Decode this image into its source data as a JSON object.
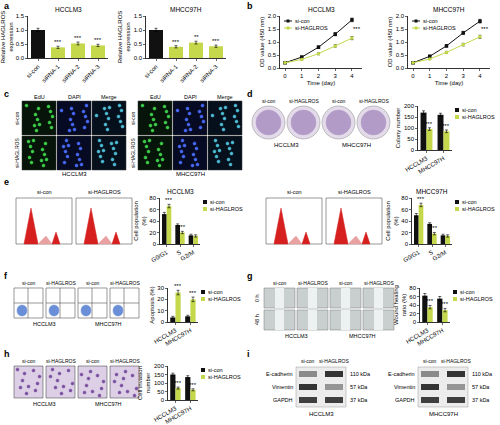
{
  "chart_data": [
    {
      "type": "bar",
      "title": "HCCLM3",
      "ylabel": "Relative HAGLROS expression",
      "categories": [
        "si-con",
        "siRNA-1",
        "siRNA-2",
        "siRNA-3"
      ],
      "values": [
        1.0,
        0.38,
        0.52,
        0.45
      ],
      "errors": [
        0.06,
        0.04,
        0.05,
        0.04
      ],
      "significance": [
        null,
        "***",
        "***",
        "***"
      ],
      "colors": [
        "#111111",
        "#c5d84b",
        "#c5d84b",
        "#c5d84b"
      ],
      "ylim": [
        0,
        1.5
      ],
      "yticks": [
        {
          "value": 0,
          "label": "0.0"
        },
        {
          "value": 0.5,
          "label": "0.5"
        },
        {
          "value": 1,
          "label": "1.0"
        },
        {
          "value": 1.5,
          "label": "1.5"
        }
      ]
    },
    {
      "type": "bar",
      "title": "MHCC97H",
      "ylabel": "Relative HAGLROS expression",
      "categories": [
        "si-con",
        "siRNA-1",
        "siRNA-2",
        "siRNA-3"
      ],
      "values": [
        1.0,
        0.4,
        0.55,
        0.42
      ],
      "errors": [
        0.06,
        0.04,
        0.05,
        0.04
      ],
      "significance": [
        null,
        "***",
        "**",
        "***"
      ],
      "colors": [
        "#111111",
        "#c5d84b",
        "#c5d84b",
        "#c5d84b"
      ],
      "ylim": [
        0,
        1.5
      ],
      "yticks": [
        {
          "value": 0,
          "label": "0.0"
        },
        {
          "value": 0.5,
          "label": "0.5"
        },
        {
          "value": 1,
          "label": "1.0"
        },
        {
          "value": 1.5,
          "label": "1.5"
        }
      ]
    },
    {
      "type": "line",
      "title": "HCCLM3",
      "xlabel": "Time (day)",
      "ylabel": "OD value (450 nm)",
      "x": [
        0,
        1,
        2,
        3,
        4
      ],
      "series": [
        {
          "name": "si-con",
          "color": "#111111",
          "marker": "square",
          "values": [
            0.2,
            0.42,
            0.8,
            1.3,
            1.85
          ],
          "errors": [
            0.03,
            0.04,
            0.05,
            0.06,
            0.07
          ]
        },
        {
          "name": "si-HAGLROS",
          "color": "#c5d84b",
          "marker": "circle",
          "values": [
            0.2,
            0.33,
            0.55,
            0.85,
            1.15
          ],
          "errors": [
            0.03,
            0.03,
            0.04,
            0.05,
            0.06
          ]
        }
      ],
      "xlim": [
        -0.3,
        4.6
      ],
      "xticks": [
        0,
        1,
        2,
        3,
        4
      ],
      "ylim": [
        0,
        2
      ],
      "yticks": [
        {
          "value": 0,
          "label": "0.0"
        },
        {
          "value": 0.5,
          "label": "0.5"
        },
        {
          "value": 1,
          "label": "1.0"
        },
        {
          "value": 1.5,
          "label": "1.5"
        },
        {
          "value": 2,
          "label": "2.0"
        }
      ],
      "legend": "upper left",
      "annotations": [
        {
          "text": "***",
          "x": 4.3,
          "y": 1.5
        }
      ]
    },
    {
      "type": "line",
      "title": "MHCC97H",
      "xlabel": "Time (day)",
      "ylabel": "OD value (450 nm)",
      "x": [
        0,
        1,
        2,
        3,
        4
      ],
      "series": [
        {
          "name": "si-con",
          "color": "#111111",
          "marker": "square",
          "values": [
            0.2,
            0.45,
            0.85,
            1.35,
            1.8
          ],
          "errors": [
            0.03,
            0.04,
            0.05,
            0.06,
            0.07
          ]
        },
        {
          "name": "si-HAGLROS",
          "color": "#c5d84b",
          "marker": "circle",
          "values": [
            0.2,
            0.35,
            0.6,
            0.9,
            1.2
          ],
          "errors": [
            0.03,
            0.03,
            0.04,
            0.05,
            0.06
          ]
        }
      ],
      "xlim": [
        -0.3,
        4.6
      ],
      "xticks": [
        0,
        1,
        2,
        3,
        4
      ],
      "ylim": [
        0,
        2
      ],
      "yticks": [
        {
          "value": 0,
          "label": "0.0"
        },
        {
          "value": 0.5,
          "label": "0.5"
        },
        {
          "value": 1,
          "label": "1.0"
        },
        {
          "value": 1.5,
          "label": "1.5"
        },
        {
          "value": 2,
          "label": "2.0"
        }
      ],
      "legend": "upper left",
      "annotations": [
        {
          "text": "***",
          "x": 4.3,
          "y": 1.5
        }
      ]
    },
    {
      "type": "bar",
      "ylabel": "Colony number",
      "categories": [
        "HCCLM3",
        "MHCC97H"
      ],
      "series": [
        {
          "name": "si-con",
          "color": "#111111",
          "values": [
            170,
            160
          ],
          "errors": [
            8,
            7
          ]
        },
        {
          "name": "si-HAGLROS",
          "color": "#c5d84b",
          "values": [
            95,
            85
          ],
          "errors": [
            6,
            6
          ],
          "significance": [
            "***",
            "***"
          ]
        }
      ],
      "ylim": [
        0,
        200
      ],
      "yticks": [
        0,
        50,
        100,
        150,
        200
      ],
      "legend": "upper right"
    },
    {
      "type": "bar",
      "title": "HCCLM3",
      "ylabel": "Cell population (%)",
      "categories": [
        "G0/G1",
        "S",
        "G2/M"
      ],
      "series": [
        {
          "name": "si-con",
          "color": "#111111",
          "values": [
            52,
            33,
            15
          ],
          "errors": [
            3,
            2,
            2
          ]
        },
        {
          "name": "si-HAGLROS",
          "color": "#c5d84b",
          "values": [
            66,
            20,
            14
          ],
          "errors": [
            3,
            2,
            2
          ],
          "significance": [
            "***",
            "***",
            null
          ]
        }
      ],
      "ylim": [
        0,
        80
      ],
      "yticks": [
        0,
        20,
        40,
        60,
        80
      ],
      "legend": "upper right"
    },
    {
      "type": "bar",
      "title": "MHCC97H",
      "ylabel": "Cell population (%)",
      "categories": [
        "G0/G1",
        "S",
        "G2/M"
      ],
      "series": [
        {
          "name": "si-con",
          "color": "#111111",
          "values": [
            50,
            35,
            15
          ],
          "errors": [
            3,
            2,
            2
          ]
        },
        {
          "name": "si-HAGLROS",
          "color": "#c5d84b",
          "values": [
            68,
            18,
            14
          ],
          "errors": [
            3,
            2,
            2
          ],
          "significance": [
            "***",
            "***",
            null
          ]
        }
      ],
      "ylim": [
        0,
        80
      ],
      "yticks": [
        0,
        20,
        40,
        60,
        80
      ],
      "legend": "upper right"
    },
    {
      "type": "bar",
      "ylabel": "Apoptosis (%)",
      "categories": [
        "HCCLM3",
        "MHCC97H"
      ],
      "series": [
        {
          "name": "si-con",
          "color": "#111111",
          "values": [
            4,
            5
          ],
          "errors": [
            1,
            1
          ]
        },
        {
          "name": "si-HAGLROS",
          "color": "#c5d84b",
          "values": [
            26,
            20
          ],
          "errors": [
            2,
            2
          ],
          "significance": [
            "***",
            "***"
          ]
        }
      ],
      "ylim": [
        0,
        30
      ],
      "yticks": [
        0,
        10,
        20,
        30
      ],
      "legend": "upper right"
    },
    {
      "type": "bar",
      "ylabel": "Wound healing ratio (%)",
      "categories": [
        "HCCLM3",
        "MHCC97H"
      ],
      "series": [
        {
          "name": "si-con",
          "color": "#111111",
          "values": [
            62,
            55
          ],
          "errors": [
            5,
            5
          ]
        },
        {
          "name": "si-HAGLROS",
          "color": "#c5d84b",
          "values": [
            35,
            28
          ],
          "errors": [
            4,
            4
          ],
          "significance": [
            "***",
            "***"
          ]
        }
      ],
      "ylim": [
        0,
        80
      ],
      "yticks": [
        0,
        20,
        40,
        60,
        80
      ],
      "legend": "upper right"
    },
    {
      "type": "bar",
      "ylabel": "Cell invasion number",
      "categories": [
        "HCCLM3",
        "MHCC97H"
      ],
      "series": [
        {
          "name": "si-con",
          "color": "#111111",
          "values": [
            150,
            135
          ],
          "errors": [
            8,
            8
          ]
        },
        {
          "name": "si-HAGLROS",
          "color": "#c5d84b",
          "values": [
            70,
            60
          ],
          "errors": [
            6,
            6
          ],
          "significance": [
            "***",
            "***"
          ]
        }
      ],
      "ylim": [
        0,
        200
      ],
      "yticks": [
        0,
        50,
        100,
        150,
        200
      ],
      "legend": "upper right"
    }
  ],
  "panels": {
    "c": {
      "columns": [
        "EdU",
        "DAPI",
        "Merge"
      ],
      "rows": [
        "si-con",
        "si-HAGLROS"
      ],
      "groups": [
        "HCCLM3",
        "MHCC97H"
      ]
    },
    "d": {
      "columns": [
        "si-con",
        "si-HAGLROS"
      ],
      "groups": [
        "HCCLM3",
        "MHCC97H"
      ]
    },
    "e": {
      "columns": [
        "si-con",
        "si-HAGLROS"
      ]
    },
    "f": {
      "columns": [
        "si-con",
        "si-HAGLROS"
      ],
      "groups": [
        "HCCLM3",
        "MHCC97H"
      ]
    },
    "g": {
      "columns": [
        "si-con",
        "si-HAGLROS"
      ],
      "rows": [
        "0 h",
        "48 h"
      ],
      "groups": [
        "HCCLM3",
        "MHCC97H"
      ]
    },
    "h": {
      "columns": [
        "si-con",
        "si-HAGLROS"
      ],
      "groups": [
        "HCCLM3",
        "MHCC97H"
      ]
    },
    "i": {
      "lanes": [
        "si-con",
        "si-HAGLROS"
      ],
      "groups": [
        "HCCLM3",
        "MHCC97H"
      ],
      "bands": [
        {
          "name": "E-cadherin",
          "size": "110 kDa",
          "intensity": [
            0.45,
            0.85
          ]
        },
        {
          "name": "Vimentin",
          "size": "57 kDa",
          "intensity": [
            0.85,
            0.4
          ]
        },
        {
          "name": "GAPDH",
          "size": "37 kDa",
          "intensity": [
            0.8,
            0.8
          ]
        }
      ]
    }
  },
  "panel_labels": [
    "a",
    "b",
    "c",
    "d",
    "e",
    "f",
    "g",
    "h",
    "i"
  ]
}
